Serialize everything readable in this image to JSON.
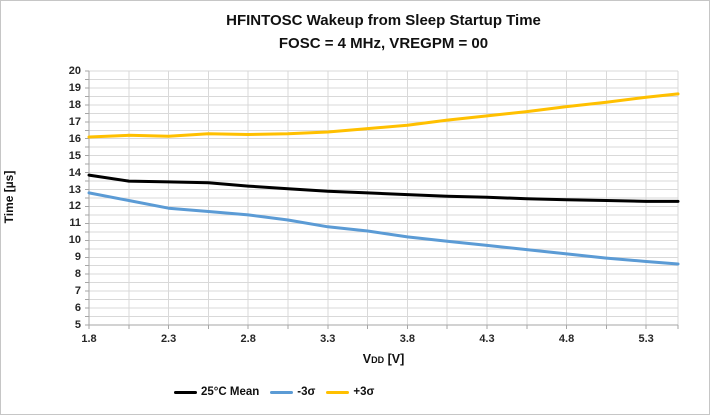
{
  "chart_data": {
    "type": "line",
    "title": "HFINTOSC Wakeup from Sleep Startup Time",
    "subtitle": "FOSC = 4 MHz, VREGPM = 00",
    "ylabel": "Time [µs]",
    "xlabel": {
      "prefix": "V",
      "subscript": "DD",
      "suffix": " [V]"
    },
    "xlim": [
      1.8,
      5.5
    ],
    "ylim": [
      5,
      20
    ],
    "x_major_ticks": [
      1.8,
      2.3,
      2.8,
      3.3,
      3.8,
      4.3,
      4.8,
      5.3
    ],
    "x_minor_step": 0.25,
    "y_major_ticks": [
      5,
      6,
      7,
      8,
      9,
      10,
      11,
      12,
      13,
      14,
      15,
      16,
      17,
      18,
      19,
      20
    ],
    "y_minor_step": 0.5,
    "grid": true,
    "legend_position": "bottom",
    "x": [
      1.8,
      2.05,
      2.3,
      2.55,
      2.8,
      3.05,
      3.3,
      3.55,
      3.8,
      4.05,
      4.3,
      4.55,
      4.8,
      5.05,
      5.3,
      5.5
    ],
    "series": [
      {
        "name": "25°C Mean",
        "color": "#000000",
        "values": [
          13.85,
          13.5,
          13.45,
          13.4,
          13.2,
          13.05,
          12.9,
          12.8,
          12.7,
          12.6,
          12.55,
          12.45,
          12.4,
          12.35,
          12.3,
          12.3
        ]
      },
      {
        "name": "-3σ",
        "color": "#5B9BD5",
        "values": [
          12.8,
          12.35,
          11.9,
          11.7,
          11.5,
          11.2,
          10.8,
          10.55,
          10.2,
          9.95,
          9.7,
          9.45,
          9.2,
          8.95,
          8.75,
          8.6
        ]
      },
      {
        "name": "+3σ",
        "color": "#FFC000",
        "values": [
          16.1,
          16.2,
          16.15,
          16.3,
          16.25,
          16.3,
          16.4,
          16.6,
          16.8,
          17.1,
          17.35,
          17.6,
          17.9,
          18.15,
          18.45,
          18.65
        ]
      }
    ],
    "colors": {
      "gridline": "#d9d9d9",
      "axis": "#a6a6a6",
      "tick": "#a6a6a6",
      "text": "#1a1a1a"
    }
  }
}
